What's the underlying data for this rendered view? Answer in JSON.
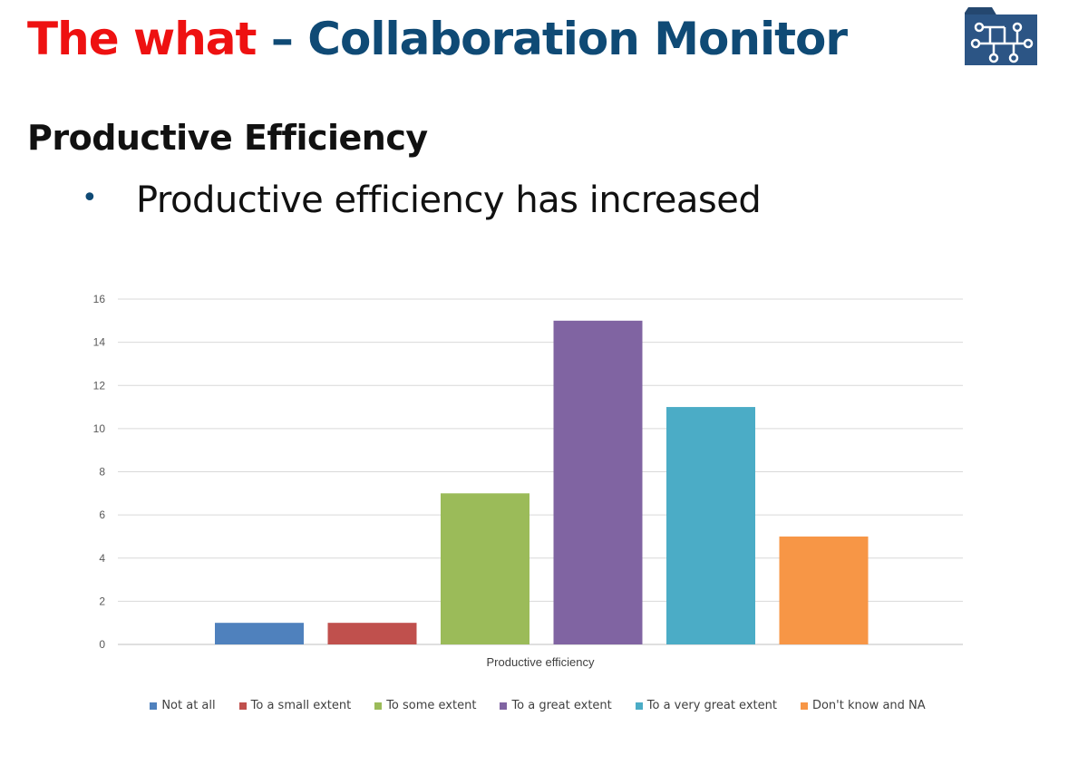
{
  "header": {
    "title_part1": "The what",
    "title_part2": "– Collaboration Monitor",
    "logo_icon": "folder-network-icon"
  },
  "section": {
    "heading": "Productive Efficiency",
    "bullet": "Productive efficiency has increased"
  },
  "chart_data": {
    "type": "bar",
    "categories": [
      "Productive efficiency"
    ],
    "xlabel": "Productive efficiency",
    "ylabel": "",
    "title": "",
    "ylim": [
      0,
      16
    ],
    "yticks": [
      0,
      2,
      4,
      6,
      8,
      10,
      12,
      14,
      16
    ],
    "grid": true,
    "legend_position": "bottom",
    "series": [
      {
        "name": "Not at all",
        "values": [
          1
        ],
        "color": "#4f81bd"
      },
      {
        "name": "To a small extent",
        "values": [
          1
        ],
        "color": "#c0504d"
      },
      {
        "name": "To some extent",
        "values": [
          7
        ],
        "color": "#9bbb59"
      },
      {
        "name": "To a great extent",
        "values": [
          15
        ],
        "color": "#8064a2"
      },
      {
        "name": "To a very great extent",
        "values": [
          11
        ],
        "color": "#4bacc6"
      },
      {
        "name": "Don't know and NA",
        "values": [
          5
        ],
        "color": "#f79646"
      }
    ]
  }
}
